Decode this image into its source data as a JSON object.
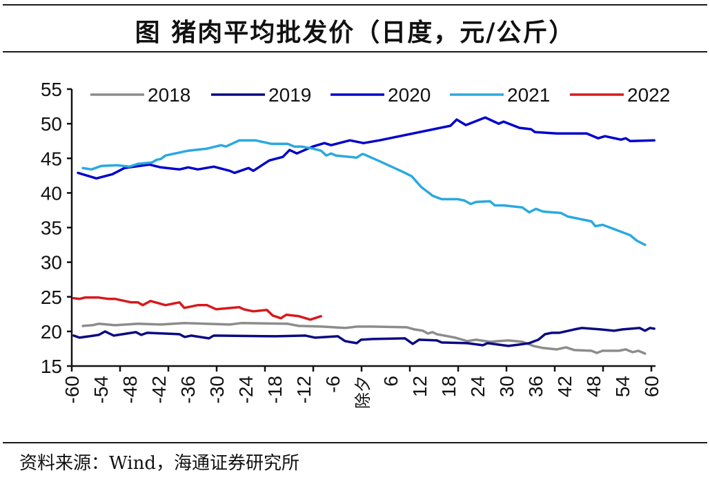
{
  "title": "图  猪肉平均批发价（日度，元/公斤）",
  "source": "资料来源：Wind，海通证券研究所",
  "chart_data": {
    "type": "line",
    "title": "猪肉平均批发价（日度，元/公斤）",
    "xlabel": "",
    "ylabel": "",
    "xlim": [
      -60,
      60
    ],
    "ylim": [
      15,
      55
    ],
    "yticks": [
      15,
      20,
      25,
      30,
      35,
      40,
      45,
      50,
      55
    ],
    "xtick_labels": [
      {
        "x": -60,
        "label": "-60"
      },
      {
        "x": -54,
        "label": "-54"
      },
      {
        "x": -48,
        "label": "-48"
      },
      {
        "x": -42,
        "label": "-42"
      },
      {
        "x": -36,
        "label": "-36"
      },
      {
        "x": -30,
        "label": "-30"
      },
      {
        "x": -24,
        "label": "-24"
      },
      {
        "x": -18,
        "label": "-18"
      },
      {
        "x": -12,
        "label": "-12"
      },
      {
        "x": -6,
        "label": "-6"
      },
      {
        "x": 0,
        "label": "除夕"
      },
      {
        "x": 6,
        "label": "6"
      },
      {
        "x": 12,
        "label": "12"
      },
      {
        "x": 18,
        "label": "18"
      },
      {
        "x": 24,
        "label": "24"
      },
      {
        "x": 30,
        "label": "30"
      },
      {
        "x": 36,
        "label": "36"
      },
      {
        "x": 42,
        "label": "42"
      },
      {
        "x": 48,
        "label": "48"
      },
      {
        "x": 54,
        "label": "54"
      },
      {
        "x": 60,
        "label": "60"
      }
    ],
    "xtick_marks": [
      -60,
      -50,
      -40,
      -30,
      -20,
      -10,
      0,
      10,
      20,
      30,
      40,
      50,
      60
    ],
    "grid": false,
    "legend_position": "top",
    "series": [
      {
        "name": "2018",
        "color": "#8C8C8C",
        "points": [
          [
            -57.7,
            20.8
          ],
          [
            -55.8,
            20.9
          ],
          [
            -54.4,
            21.1
          ],
          [
            -51,
            20.9
          ],
          [
            -46.3,
            21.1
          ],
          [
            -41.6,
            21.0
          ],
          [
            -36.7,
            21.2
          ],
          [
            -27.3,
            21.0
          ],
          [
            -24.9,
            21.2
          ],
          [
            -15.3,
            21.1
          ],
          [
            -13,
            20.8
          ],
          [
            -8.1,
            20.7
          ],
          [
            -3.4,
            20.5
          ],
          [
            -1,
            20.7
          ],
          [
            2.3,
            20.7
          ],
          [
            9.4,
            20.6
          ],
          [
            10.9,
            20.3
          ],
          [
            12.7,
            20.1
          ],
          [
            13.7,
            19.7
          ],
          [
            14.7,
            19.9
          ],
          [
            15.6,
            19.6
          ],
          [
            19.4,
            19.1
          ],
          [
            21.9,
            18.6
          ],
          [
            23.7,
            18.8
          ],
          [
            26.6,
            18.5
          ],
          [
            28.4,
            18.6
          ],
          [
            30.4,
            18.7
          ],
          [
            33.3,
            18.5
          ],
          [
            35.6,
            17.9
          ],
          [
            37.6,
            17.6
          ],
          [
            40.4,
            17.4
          ],
          [
            42.3,
            17.7
          ],
          [
            44.1,
            17.3
          ],
          [
            47.6,
            17.2
          ],
          [
            48.7,
            16.9
          ],
          [
            49.9,
            17.2
          ],
          [
            53.3,
            17.2
          ],
          [
            54.7,
            17.4
          ],
          [
            56.1,
            17.0
          ],
          [
            57.3,
            17.2
          ],
          [
            58.7,
            16.8
          ]
        ]
      },
      {
        "name": "2019",
        "color": "#0A0A82",
        "points": [
          [
            -59.6,
            19.4
          ],
          [
            -58.4,
            19.1
          ],
          [
            -54.4,
            19.5
          ],
          [
            -53.1,
            20.0
          ],
          [
            -51.3,
            19.4
          ],
          [
            -46.7,
            19.9
          ],
          [
            -45.6,
            19.5
          ],
          [
            -44.4,
            19.8
          ],
          [
            -37.7,
            19.6
          ],
          [
            -36.6,
            19.2
          ],
          [
            -35.3,
            19.4
          ],
          [
            -31.6,
            19.0
          ],
          [
            -30.6,
            19.4
          ],
          [
            -17.7,
            19.3
          ],
          [
            -11.6,
            19.4
          ],
          [
            -9.6,
            19.1
          ],
          [
            -4.9,
            19.3
          ],
          [
            -3.4,
            18.6
          ],
          [
            -1,
            18.3
          ],
          [
            -0.1,
            18.8
          ],
          [
            2.3,
            18.9
          ],
          [
            9,
            19.0
          ],
          [
            10.6,
            18.2
          ],
          [
            11.9,
            18.8
          ],
          [
            15.6,
            18.7
          ],
          [
            16.6,
            18.4
          ],
          [
            21.9,
            18.3
          ],
          [
            25.1,
            18.0
          ],
          [
            26.1,
            18.3
          ],
          [
            30.4,
            17.9
          ],
          [
            32.7,
            18.1
          ],
          [
            34.7,
            18.3
          ],
          [
            36.6,
            18.8
          ],
          [
            38,
            19.6
          ],
          [
            39.4,
            19.8
          ],
          [
            40.9,
            19.8
          ],
          [
            44.1,
            20.3
          ],
          [
            45.6,
            20.5
          ],
          [
            49.4,
            20.3
          ],
          [
            52.3,
            20.1
          ],
          [
            54.1,
            20.3
          ],
          [
            57.6,
            20.5
          ],
          [
            58.7,
            20.1
          ],
          [
            59.7,
            20.5
          ],
          [
            60.6,
            20.4
          ]
        ]
      },
      {
        "name": "2020",
        "color": "#0000CC",
        "points": [
          [
            -58.7,
            42.9
          ],
          [
            -54.9,
            42.1
          ],
          [
            -51.6,
            42.7
          ],
          [
            -49.1,
            43.6
          ],
          [
            -43.9,
            44.1
          ],
          [
            -41.6,
            43.7
          ],
          [
            -37.7,
            43.4
          ],
          [
            -35.9,
            43.7
          ],
          [
            -33.9,
            43.4
          ],
          [
            -30.6,
            43.8
          ],
          [
            -27.3,
            43.2
          ],
          [
            -26.3,
            42.9
          ],
          [
            -23.4,
            43.6
          ],
          [
            -22.4,
            43.2
          ],
          [
            -19.1,
            44.7
          ],
          [
            -16.3,
            45.2
          ],
          [
            -14.9,
            46.2
          ],
          [
            -13.4,
            45.7
          ],
          [
            -10.1,
            46.7
          ],
          [
            -7.7,
            47.2
          ],
          [
            -6.3,
            46.9
          ],
          [
            -2.4,
            47.6
          ],
          [
            0.4,
            47.2
          ],
          [
            3.7,
            47.6
          ],
          [
            18.4,
            49.7
          ],
          [
            19.7,
            50.6
          ],
          [
            21.6,
            49.8
          ],
          [
            25.6,
            50.9
          ],
          [
            28.4,
            50.0
          ],
          [
            29.4,
            50.3
          ],
          [
            32.7,
            49.4
          ],
          [
            35.1,
            49.2
          ],
          [
            35.9,
            48.8
          ],
          [
            40.4,
            48.6
          ],
          [
            46.6,
            48.6
          ],
          [
            49.0,
            47.9
          ],
          [
            50.4,
            48.2
          ],
          [
            53.7,
            47.7
          ],
          [
            54.7,
            47.9
          ],
          [
            55.6,
            47.5
          ],
          [
            60.6,
            47.6
          ]
        ]
      },
      {
        "name": "2021",
        "color": "#29A9DF",
        "points": [
          [
            -57.7,
            43.6
          ],
          [
            -55.9,
            43.4
          ],
          [
            -53.9,
            43.9
          ],
          [
            -50.6,
            44.0
          ],
          [
            -48.1,
            43.8
          ],
          [
            -46.3,
            44.2
          ],
          [
            -43.4,
            44.4
          ],
          [
            -42.4,
            44.8
          ],
          [
            -41.6,
            44.9
          ],
          [
            -40.6,
            45.4
          ],
          [
            -35.9,
            46.1
          ],
          [
            -32,
            46.4
          ],
          [
            -29.1,
            46.9
          ],
          [
            -28.1,
            46.7
          ],
          [
            -25.3,
            47.6
          ],
          [
            -22,
            47.6
          ],
          [
            -18.7,
            47.1
          ],
          [
            -15.3,
            47.1
          ],
          [
            -13.9,
            46.7
          ],
          [
            -12.4,
            46.7
          ],
          [
            -10.1,
            46.4
          ],
          [
            -8.4,
            46.1
          ],
          [
            -7.3,
            45.4
          ],
          [
            -6.3,
            45.7
          ],
          [
            -5.3,
            45.4
          ],
          [
            -1,
            45.1
          ],
          [
            0.1,
            45.6
          ],
          [
            0.4,
            45.6
          ],
          [
            3.7,
            44.6
          ],
          [
            9,
            42.9
          ],
          [
            10.4,
            42.4
          ],
          [
            12.3,
            40.9
          ],
          [
            14.7,
            39.6
          ],
          [
            16.6,
            39.1
          ],
          [
            19.9,
            39.1
          ],
          [
            21.3,
            38.9
          ],
          [
            22.6,
            38.4
          ],
          [
            23.7,
            38.7
          ],
          [
            26.6,
            38.8
          ],
          [
            27.6,
            38.2
          ],
          [
            29.4,
            38.2
          ],
          [
            33.3,
            37.9
          ],
          [
            34.7,
            37.2
          ],
          [
            36.1,
            37.7
          ],
          [
            37.6,
            37.3
          ],
          [
            41.3,
            37.1
          ],
          [
            42.7,
            36.6
          ],
          [
            47.6,
            35.9
          ],
          [
            48.4,
            35.2
          ],
          [
            49.9,
            35.4
          ],
          [
            55.6,
            33.9
          ],
          [
            57.0,
            33.1
          ],
          [
            58.7,
            32.5
          ]
        ]
      },
      {
        "name": "2022",
        "color": "#D7191C",
        "points": [
          [
            -59.6,
            24.8
          ],
          [
            -58.4,
            24.7
          ],
          [
            -57.3,
            24.9
          ],
          [
            -54.4,
            24.9
          ],
          [
            -52.4,
            24.7
          ],
          [
            -51,
            24.7
          ],
          [
            -47.7,
            24.2
          ],
          [
            -46.3,
            24.2
          ],
          [
            -45.3,
            23.8
          ],
          [
            -43.7,
            24.4
          ],
          [
            -40.6,
            23.8
          ],
          [
            -37.7,
            24.2
          ],
          [
            -36.7,
            23.4
          ],
          [
            -33.9,
            23.8
          ],
          [
            -32,
            23.8
          ],
          [
            -30.1,
            23.2
          ],
          [
            -25.3,
            23.5
          ],
          [
            -24.4,
            23.2
          ],
          [
            -22.4,
            22.9
          ],
          [
            -19.6,
            23.1
          ],
          [
            -18.4,
            22.3
          ],
          [
            -16.7,
            21.9
          ],
          [
            -15.6,
            22.4
          ],
          [
            -13,
            22.2
          ],
          [
            -10.6,
            21.7
          ],
          [
            -8.4,
            22.2
          ]
        ]
      }
    ]
  }
}
